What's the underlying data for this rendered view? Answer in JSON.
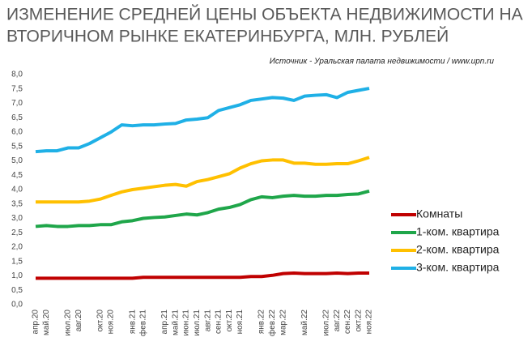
{
  "chart_data": {
    "type": "line",
    "title": [
      "ИЗМЕНЕНИЕ СРЕДНЕЙ ЦЕНЫ ОБЪЕКТА НЕДВИЖИМОСТИ НА",
      "ВТОРИЧНОМ РЫНКЕ ЕКАТЕРИНБУРГА, МЛН. РУБЛЕЙ"
    ],
    "source": "Источник - Уральская палата недвижимости  / www.upn.ru",
    "categories": [
      "апр.20",
      "май.20",
      null,
      "июл.20",
      "авг.20",
      null,
      "окт.20",
      "ноя.20",
      null,
      "янв.21",
      "фев.21",
      null,
      "апр.21",
      "май.21",
      "июн.21",
      "июл.21",
      "авг.21",
      "сен.21",
      "окт.21",
      "ноя.21",
      null,
      "янв.22",
      "фев.22",
      "мар.22",
      null,
      "май.22",
      null,
      "июл.22",
      "авг.22",
      "сен.22",
      "окт.22",
      "ноя.22"
    ],
    "series": [
      {
        "name": "Комнаты",
        "color": "#c00000",
        "values": [
          0.92,
          0.92,
          0.92,
          0.92,
          0.92,
          0.92,
          0.92,
          0.92,
          0.92,
          0.92,
          0.95,
          0.95,
          0.95,
          0.95,
          0.95,
          0.95,
          0.95,
          0.95,
          0.95,
          0.95,
          0.98,
          0.98,
          1.02,
          1.08,
          1.1,
          1.08,
          1.08,
          1.08,
          1.1,
          1.08,
          1.1,
          1.1
        ]
      },
      {
        "name": "1-ком. квартира",
        "color": "#1fa64a",
        "values": [
          2.72,
          2.75,
          2.72,
          2.72,
          2.75,
          2.75,
          2.78,
          2.78,
          2.88,
          2.92,
          3.0,
          3.03,
          3.05,
          3.1,
          3.15,
          3.12,
          3.2,
          3.32,
          3.38,
          3.48,
          3.65,
          3.75,
          3.72,
          3.77,
          3.8,
          3.77,
          3.77,
          3.8,
          3.8,
          3.83,
          3.85,
          3.95
        ]
      },
      {
        "name": "2-ком. квартира",
        "color": "#ffc000",
        "values": [
          3.57,
          3.57,
          3.57,
          3.57,
          3.57,
          3.6,
          3.67,
          3.8,
          3.92,
          4.0,
          4.05,
          4.1,
          4.15,
          4.18,
          4.12,
          4.28,
          4.35,
          4.45,
          4.55,
          4.75,
          4.9,
          5.0,
          5.03,
          5.03,
          4.92,
          4.92,
          4.88,
          4.88,
          4.9,
          4.9,
          5.0,
          5.12
        ]
      },
      {
        "name": "3-ком. квартира",
        "color": "#1fb0e6",
        "values": [
          5.32,
          5.35,
          5.35,
          5.45,
          5.45,
          5.6,
          5.8,
          6.0,
          6.25,
          6.22,
          6.25,
          6.25,
          6.28,
          6.3,
          6.42,
          6.45,
          6.5,
          6.75,
          6.85,
          6.95,
          7.1,
          7.15,
          7.2,
          7.18,
          7.1,
          7.25,
          7.28,
          7.3,
          7.2,
          7.38,
          7.45,
          7.52
        ]
      }
    ],
    "ylim": [
      0,
      8
    ],
    "yticks": [
      {
        "value": 0,
        "label": "0,0"
      },
      {
        "value": 0.5,
        "label": "0,5"
      },
      {
        "value": 1,
        "label": "1,0"
      },
      {
        "value": 1.5,
        "label": "1,5"
      },
      {
        "value": 2,
        "label": "2,0"
      },
      {
        "value": 2.5,
        "label": "2,5"
      },
      {
        "value": 3,
        "label": "3,0"
      },
      {
        "value": 3.5,
        "label": "3,5"
      },
      {
        "value": 4,
        "label": "4,0"
      },
      {
        "value": 4.5,
        "label": "4,5"
      },
      {
        "value": 5,
        "label": "5,0"
      },
      {
        "value": 5.5,
        "label": "5,5"
      },
      {
        "value": 6,
        "label": "6,0"
      },
      {
        "value": 6.5,
        "label": "6,5"
      },
      {
        "value": 7,
        "label": "7,0"
      },
      {
        "value": 7.5,
        "label": "7,5"
      },
      {
        "value": 8,
        "label": "8,0"
      }
    ],
    "grid": false,
    "legend": "right"
  }
}
